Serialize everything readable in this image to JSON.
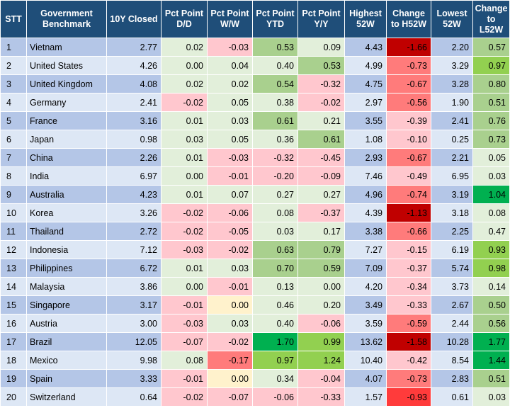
{
  "headers": [
    "STT",
    "Government Benchmark",
    "10Y Closed",
    "Pct Point D/D",
    "Pct Point W/W",
    "Pct Point YTD",
    "Pct Point Y/Y",
    "Highest 52W",
    "Change to H52W",
    "Lowest 52W",
    "Change to L52W"
  ],
  "colors": {
    "header_bg": "#1f4e79",
    "row_odd": "#b4c6e7",
    "row_even": "#dde7f5",
    "neg_light": "#ffc7ce",
    "neg_mid": "#ff7b7b",
    "neg_strong": "#ff3b3b",
    "neg_dark": "#c00000",
    "pos_light": "#e2efda",
    "pos_mid": "#a9d08e",
    "pos_strong": "#92d050",
    "pos_dark": "#00b050",
    "neutral": "#fff2cc"
  },
  "rows": [
    {
      "stt": "1",
      "name": "Vietnam",
      "closed": "2.77",
      "dd": "0.02",
      "ww": "-0.03",
      "ytd": "0.53",
      "yy": "0.09",
      "h52": "4.43",
      "ch52": "-1.66",
      "l52": "2.20",
      "cl52": "0.57"
    },
    {
      "stt": "2",
      "name": "United States",
      "closed": "4.26",
      "dd": "0.00",
      "ww": "0.04",
      "ytd": "0.40",
      "yy": "0.53",
      "h52": "4.99",
      "ch52": "-0.73",
      "l52": "3.29",
      "cl52": "0.97"
    },
    {
      "stt": "3",
      "name": "United Kingdom",
      "closed": "4.08",
      "dd": "0.02",
      "ww": "0.02",
      "ytd": "0.54",
      "yy": "-0.32",
      "h52": "4.75",
      "ch52": "-0.67",
      "l52": "3.28",
      "cl52": "0.80"
    },
    {
      "stt": "4",
      "name": "Germany",
      "closed": "2.41",
      "dd": "-0.02",
      "ww": "0.05",
      "ytd": "0.38",
      "yy": "-0.02",
      "h52": "2.97",
      "ch52": "-0.56",
      "l52": "1.90",
      "cl52": "0.51"
    },
    {
      "stt": "5",
      "name": "France",
      "closed": "3.16",
      "dd": "0.01",
      "ww": "0.03",
      "ytd": "0.61",
      "yy": "0.21",
      "h52": "3.55",
      "ch52": "-0.39",
      "l52": "2.41",
      "cl52": "0.76"
    },
    {
      "stt": "6",
      "name": "Japan",
      "closed": "0.98",
      "dd": "0.03",
      "ww": "0.05",
      "ytd": "0.36",
      "yy": "0.61",
      "h52": "1.08",
      "ch52": "-0.10",
      "l52": "0.25",
      "cl52": "0.73"
    },
    {
      "stt": "7",
      "name": "China",
      "closed": "2.26",
      "dd": "0.01",
      "ww": "-0.03",
      "ytd": "-0.32",
      "yy": "-0.45",
      "h52": "2.93",
      "ch52": "-0.67",
      "l52": "2.21",
      "cl52": "0.05"
    },
    {
      "stt": "8",
      "name": "India",
      "closed": "6.97",
      "dd": "0.00",
      "ww": "-0.01",
      "ytd": "-0.20",
      "yy": "-0.09",
      "h52": "7.46",
      "ch52": "-0.49",
      "l52": "6.95",
      "cl52": "0.03"
    },
    {
      "stt": "9",
      "name": "Australia",
      "closed": "4.23",
      "dd": "0.01",
      "ww": "0.07",
      "ytd": "0.27",
      "yy": "0.27",
      "h52": "4.96",
      "ch52": "-0.74",
      "l52": "3.19",
      "cl52": "1.04"
    },
    {
      "stt": "10",
      "name": "Korea",
      "closed": "3.26",
      "dd": "-0.02",
      "ww": "-0.06",
      "ytd": "0.08",
      "yy": "-0.37",
      "h52": "4.39",
      "ch52": "-1.13",
      "l52": "3.18",
      "cl52": "0.08"
    },
    {
      "stt": "11",
      "name": "Thailand",
      "closed": "2.72",
      "dd": "-0.02",
      "ww": "-0.05",
      "ytd": "0.03",
      "yy": "0.17",
      "h52": "3.38",
      "ch52": "-0.66",
      "l52": "2.25",
      "cl52": "0.47"
    },
    {
      "stt": "12",
      "name": "Indonesia",
      "closed": "7.12",
      "dd": "-0.03",
      "ww": "-0.02",
      "ytd": "0.63",
      "yy": "0.79",
      "h52": "7.27",
      "ch52": "-0.15",
      "l52": "6.19",
      "cl52": "0.93"
    },
    {
      "stt": "13",
      "name": "Philippines",
      "closed": "6.72",
      "dd": "0.01",
      "ww": "0.03",
      "ytd": "0.70",
      "yy": "0.59",
      "h52": "7.09",
      "ch52": "-0.37",
      "l52": "5.74",
      "cl52": "0.98"
    },
    {
      "stt": "14",
      "name": "Malaysia",
      "closed": "3.86",
      "dd": "0.00",
      "ww": "-0.01",
      "ytd": "0.13",
      "yy": "0.00",
      "h52": "4.20",
      "ch52": "-0.34",
      "l52": "3.73",
      "cl52": "0.14"
    },
    {
      "stt": "15",
      "name": "Singapore",
      "closed": "3.17",
      "dd": "-0.01",
      "ww": "0.00",
      "ytd": "0.46",
      "yy": "0.20",
      "h52": "3.49",
      "ch52": "-0.33",
      "l52": "2.67",
      "cl52": "0.50"
    },
    {
      "stt": "16",
      "name": "Austria",
      "closed": "3.00",
      "dd": "-0.03",
      "ww": "0.03",
      "ytd": "0.40",
      "yy": "-0.06",
      "h52": "3.59",
      "ch52": "-0.59",
      "l52": "2.44",
      "cl52": "0.56"
    },
    {
      "stt": "17",
      "name": "Brazil",
      "closed": "12.05",
      "dd": "-0.07",
      "ww": "-0.02",
      "ytd": "1.70",
      "yy": "0.99",
      "h52": "13.62",
      "ch52": "-1.58",
      "l52": "10.28",
      "cl52": "1.77"
    },
    {
      "stt": "18",
      "name": "Mexico",
      "closed": "9.98",
      "dd": "0.08",
      "ww": "-0.17",
      "ytd": "0.97",
      "yy": "1.24",
      "h52": "10.40",
      "ch52": "-0.42",
      "l52": "8.54",
      "cl52": "1.44"
    },
    {
      "stt": "19",
      "name": "Spain",
      "closed": "3.33",
      "dd": "-0.01",
      "ww": "0.00",
      "ytd": "0.34",
      "yy": "-0.04",
      "h52": "4.07",
      "ch52": "-0.73",
      "l52": "2.83",
      "cl52": "0.51"
    },
    {
      "stt": "20",
      "name": "Switzerland",
      "closed": "0.64",
      "dd": "-0.02",
      "ww": "-0.07",
      "ytd": "-0.06",
      "yy": "-0.33",
      "h52": "1.57",
      "ch52": "-0.93",
      "l52": "0.61",
      "cl52": "0.03"
    }
  ]
}
